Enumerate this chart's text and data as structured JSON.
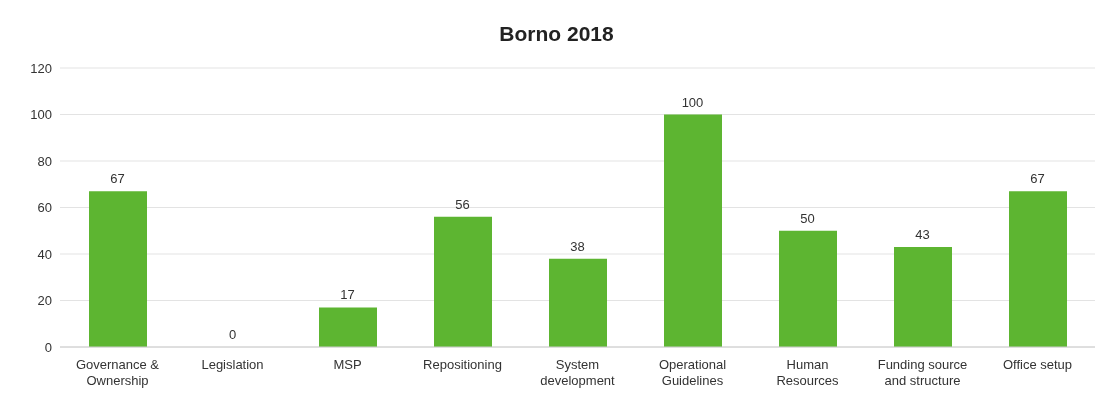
{
  "chart_data": {
    "type": "bar",
    "title": "Borno 2018",
    "categories": [
      "Governance & Ownership",
      "Legislation",
      "MSP",
      "Repositioning",
      "System development",
      "Operational Guidelines",
      "Human Resources",
      "Funding source and structure",
      "Office setup"
    ],
    "values": [
      67,
      0,
      17,
      56,
      38,
      100,
      50,
      43,
      67
    ],
    "color": "#5db531",
    "ylim": [
      0,
      120
    ],
    "yticks": [
      0,
      20,
      40,
      60,
      80,
      100,
      120
    ],
    "grid": "y",
    "data_labels": true,
    "legend": false
  }
}
